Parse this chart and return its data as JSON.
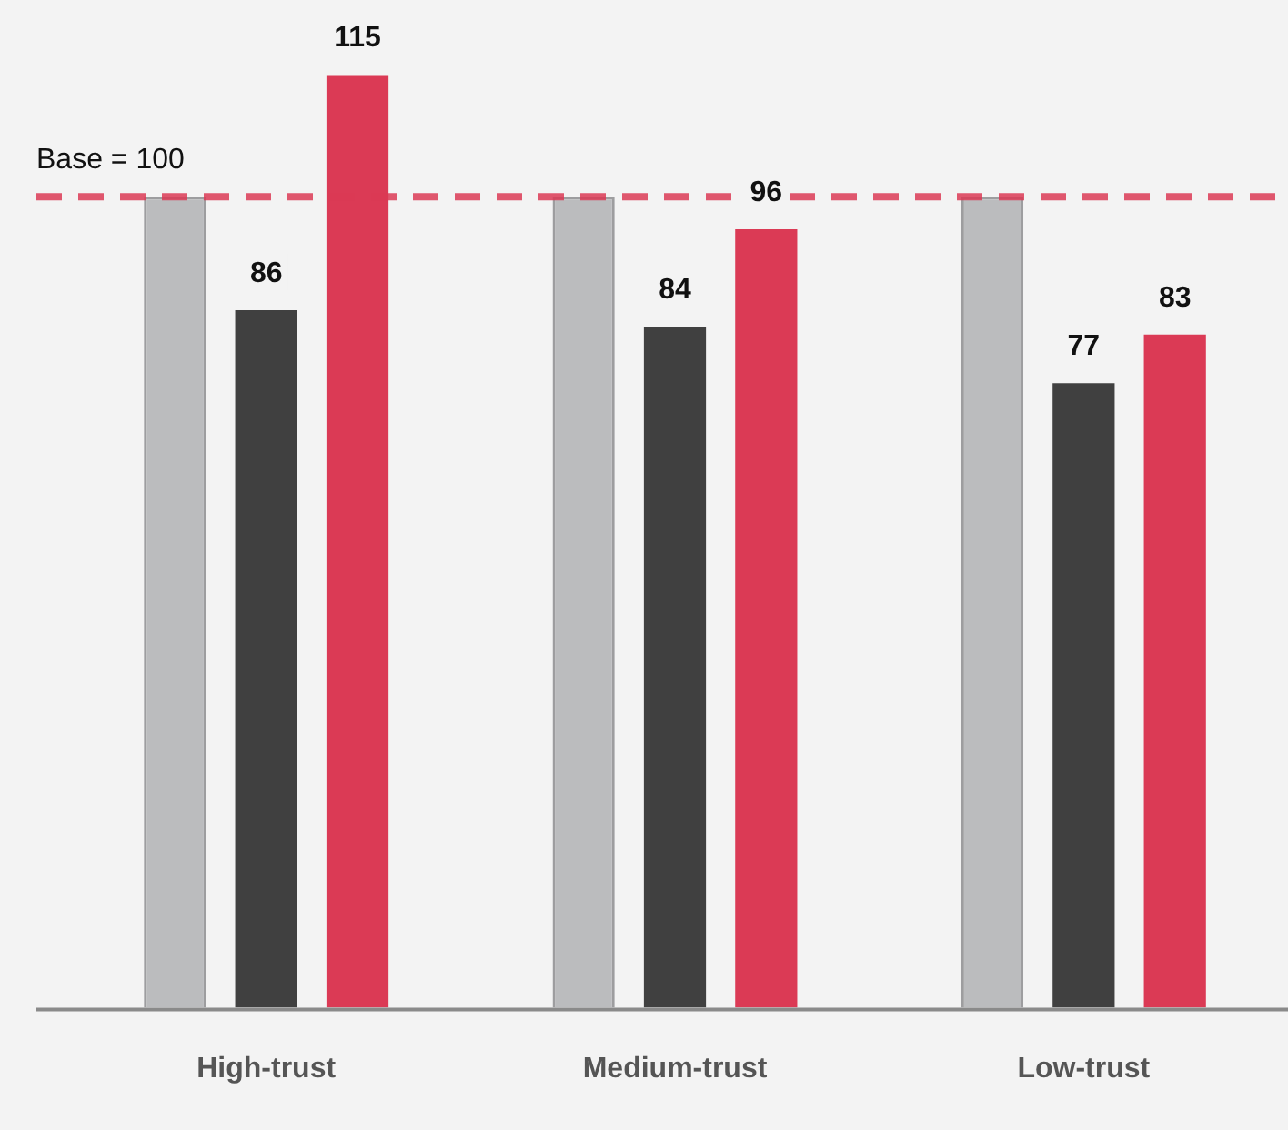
{
  "chart_data": {
    "type": "bar",
    "categories": [
      "High-trust",
      "Medium-trust",
      "Low-trust"
    ],
    "series": [
      {
        "color": "#bbbcbe",
        "values": [
          100,
          100,
          100
        ]
      },
      {
        "color": "#404040",
        "values": [
          86,
          84,
          77
        ],
        "value_labels": [
          "86",
          "84",
          "77"
        ]
      },
      {
        "color": "#db3a55",
        "values": [
          115,
          96,
          83
        ],
        "value_labels": [
          "115",
          "96",
          "83"
        ]
      }
    ],
    "tick_labels": "x",
    "grid": false,
    "legend": false,
    "ref_lines": [
      {
        "axis": "y",
        "value": 100,
        "label": "Base = 100",
        "color": "#db3a55",
        "line_style": "dashed"
      }
    ]
  }
}
